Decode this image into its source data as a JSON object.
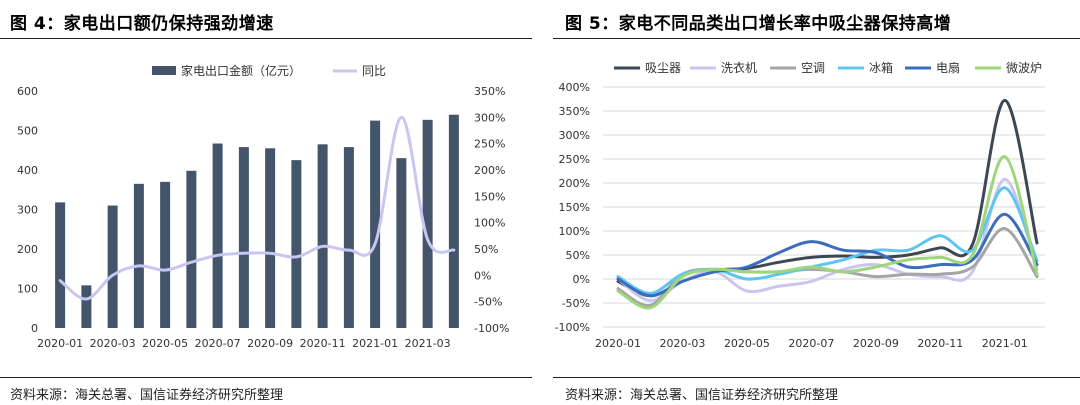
{
  "panels": [
    {
      "source": "资料来源：海关总署、国信证券经济研究所整理"
    },
    {
      "source": "资料来源：海关总署、国信证券经济研究所整理"
    }
  ],
  "chart_data": [
    {
      "type": "bar",
      "title": "图 4：家电出口额仍保持强劲增速",
      "categories": [
        "2020-01",
        "2020-02",
        "2020-03",
        "2020-04",
        "2020-05",
        "2020-06",
        "2020-07",
        "2020-08",
        "2020-09",
        "2020-10",
        "2020-11",
        "2020-12",
        "2021-01",
        "2021-02",
        "2021-03",
        "2021-04"
      ],
      "series": [
        {
          "name": "家电出口金额（亿元）",
          "type": "bar",
          "axis": "left",
          "color": "#44546a",
          "values": [
            318,
            108,
            310,
            365,
            370,
            398,
            467,
            458,
            455,
            425,
            465,
            458,
            525,
            430,
            527,
            540
          ]
        },
        {
          "name": "同比",
          "type": "line",
          "axis": "right",
          "color": "#c9c7f1",
          "values": [
            -10,
            -45,
            0,
            18,
            10,
            25,
            38,
            42,
            42,
            35,
            55,
            48,
            60,
            300,
            68,
            48
          ]
        }
      ],
      "ylim": [
        0,
        600
      ],
      "y_step": 100,
      "y2lim": [
        -100,
        350
      ],
      "y2_step": 50,
      "y2_unit": "%",
      "xlabel": "",
      "ylabel": "",
      "grid": false,
      "legend": "top"
    },
    {
      "type": "line",
      "title": "图 5：家电不同品类出口增长率中吸尘器保持高增",
      "categories": [
        "2020-01",
        "2020-02",
        "2020-03",
        "2020-04",
        "2020-05",
        "2020-06",
        "2020-07",
        "2020-08",
        "2020-09",
        "2020-10",
        "2020-11",
        "2020-12",
        "2021-01",
        "2021-02"
      ],
      "series": [
        {
          "name": "吸尘器",
          "color": "#3d4654",
          "values": [
            -5,
            -35,
            -5,
            18,
            22,
            35,
            45,
            48,
            45,
            50,
            65,
            72,
            372,
            75
          ]
        },
        {
          "name": "洗衣机",
          "color": "#c8c6f0",
          "values": [
            0,
            -45,
            -5,
            15,
            -25,
            -15,
            -5,
            20,
            30,
            10,
            5,
            15,
            208,
            20
          ]
        },
        {
          "name": "空调",
          "color": "#a5a5a5",
          "values": [
            -20,
            -55,
            10,
            20,
            15,
            15,
            20,
            15,
            5,
            10,
            10,
            25,
            105,
            5
          ]
        },
        {
          "name": "冰箱",
          "color": "#5ec4f0",
          "values": [
            5,
            -30,
            10,
            20,
            0,
            10,
            25,
            40,
            60,
            60,
            90,
            60,
            190,
            38
          ]
        },
        {
          "name": "电扇",
          "color": "#3b6dbf",
          "values": [
            0,
            -35,
            -5,
            15,
            25,
            55,
            78,
            60,
            55,
            25,
            30,
            40,
            135,
            30
          ]
        },
        {
          "name": "微波炉",
          "color": "#9fd67c",
          "values": [
            -25,
            -60,
            5,
            20,
            15,
            15,
            25,
            15,
            25,
            40,
            45,
            50,
            255,
            10
          ]
        }
      ],
      "ylim": [
        -100,
        400
      ],
      "y_step": 50,
      "y_unit": "%",
      "xlabel": "",
      "ylabel": "",
      "grid": true,
      "legend": "top"
    }
  ]
}
